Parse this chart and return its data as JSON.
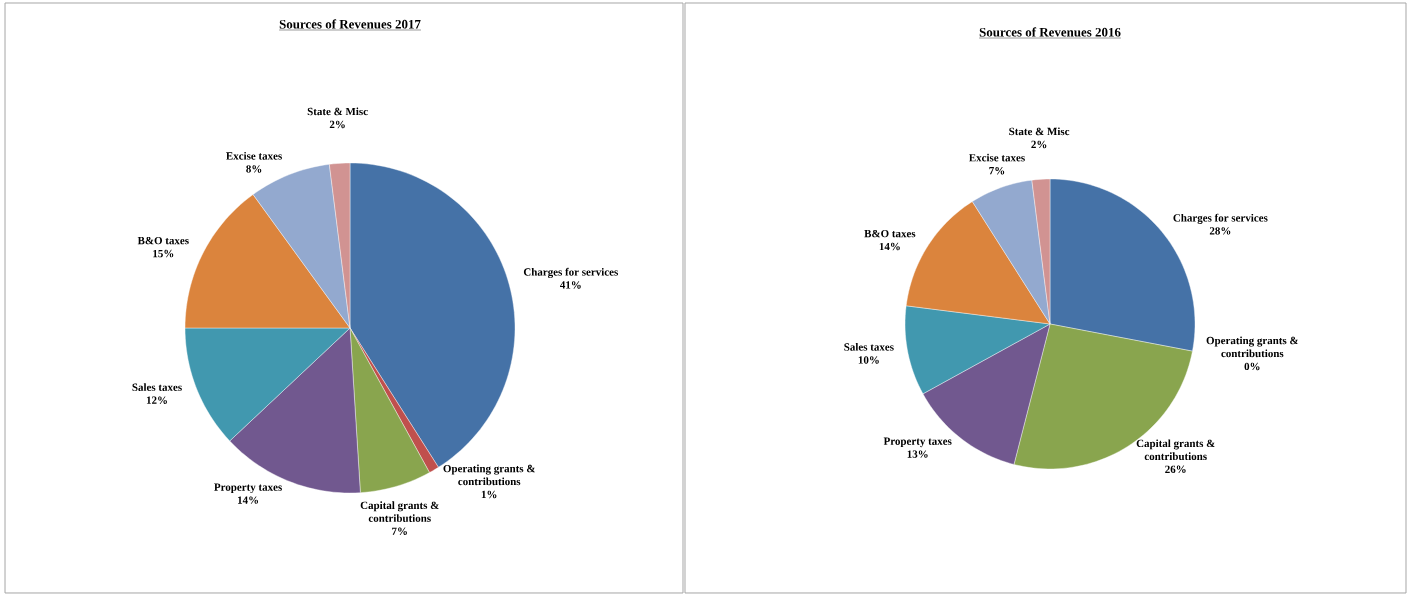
{
  "chart_data": [
    {
      "type": "pie",
      "title": "Sources of Revenues 2017",
      "categories": [
        "Charges for services",
        "Operating grants & contributions",
        "Capital grants & contributions",
        "Property taxes",
        "Sales taxes",
        "B&O taxes",
        "Excise taxes",
        "State & Misc"
      ],
      "values": [
        41,
        1,
        7,
        14,
        12,
        15,
        8,
        2
      ],
      "value_labels": [
        "41%",
        "1%",
        "7%",
        "14%",
        "12%",
        "15%",
        "8%",
        "2%"
      ],
      "colors": [
        "#4572a7",
        "#c0504d",
        "#89a54e",
        "#71588f",
        "#4198af",
        "#db843d",
        "#93a9cf",
        "#d19392"
      ]
    },
    {
      "type": "pie",
      "title": "Sources of Revenues 2016",
      "categories": [
        "Charges for services",
        "Operating grants & contributions",
        "Capital grants & contributions",
        "Property taxes",
        "Sales taxes",
        "B&O taxes",
        "Excise taxes",
        "State & Misc"
      ],
      "values": [
        28,
        0,
        26,
        13,
        10,
        14,
        7,
        2
      ],
      "value_labels": [
        "28%",
        "0%",
        "26%",
        "13%",
        "10%",
        "14%",
        "7%",
        "2%"
      ],
      "colors": [
        "#4572a7",
        "#c0504d",
        "#89a54e",
        "#71588f",
        "#4198af",
        "#db843d",
        "#93a9cf",
        "#d19392"
      ]
    }
  ]
}
